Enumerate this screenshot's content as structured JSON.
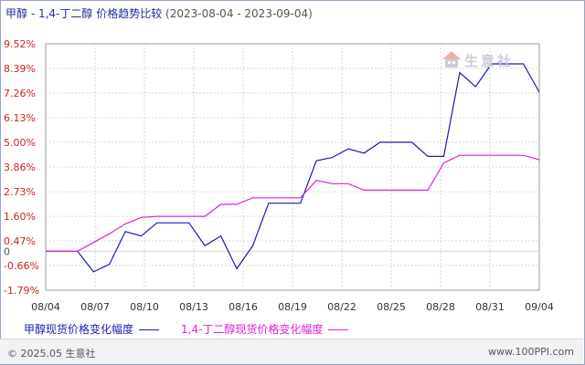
{
  "header": {
    "title": "甲醇 - 1,4-丁二醇 价格趋势比较",
    "date_range": "(2023-08-04 - 2023-09-04)"
  },
  "watermark": {
    "text": "生意社"
  },
  "footer": {
    "copyright": "© 2025.05 生意社",
    "site": "www.100PPI.com"
  },
  "colors": {
    "series_1": "#1a1ab8",
    "series_2": "#e020d8",
    "positive_tick": "#cc2222",
    "negative_tick": "#cc2222",
    "zero_tick": "#555555"
  },
  "chart_data": {
    "type": "line",
    "title": "甲醇 - 1,4-丁二醇 价格趋势比较",
    "xlabel": "",
    "ylabel": "",
    "ylim": [
      -1.79,
      9.52
    ],
    "y_ticks": [
      "9.52%",
      "8.39%",
      "7.26%",
      "6.13%",
      "5.00%",
      "3.86%",
      "2.73%",
      "1.60%",
      "0.47%",
      "0",
      "-0.66%",
      "-1.79%"
    ],
    "y_tick_values": [
      9.52,
      8.39,
      7.26,
      6.13,
      5.0,
      3.86,
      2.73,
      1.6,
      0.47,
      0,
      -0.66,
      -1.79
    ],
    "x_ticks": [
      "08/04",
      "08/07",
      "08/10",
      "08/13",
      "08/16",
      "08/19",
      "08/22",
      "08/25",
      "08/28",
      "08/31",
      "09/04"
    ],
    "x_tick_days": [
      0,
      3,
      6,
      9,
      12,
      15,
      18,
      21,
      24,
      27,
      30
    ],
    "grid": true,
    "legend_position": "bottom",
    "series": [
      {
        "name": "甲醇现货价格变化幅度",
        "color": "#1a1ab8",
        "points": [
          [
            0,
            0
          ],
          [
            1,
            0
          ],
          [
            2,
            0
          ],
          [
            3,
            -0.95
          ],
          [
            4,
            -0.6
          ],
          [
            5,
            0.9
          ],
          [
            6,
            0.7
          ],
          [
            7,
            1.3
          ],
          [
            8,
            1.3
          ],
          [
            9,
            1.3
          ],
          [
            10,
            0.25
          ],
          [
            11,
            0.7
          ],
          [
            12,
            -0.8
          ],
          [
            13,
            0.25
          ],
          [
            14,
            2.2
          ],
          [
            15,
            2.2
          ],
          [
            16,
            2.2
          ],
          [
            17,
            4.15
          ],
          [
            18,
            4.3
          ],
          [
            19,
            4.7
          ],
          [
            20,
            4.5
          ],
          [
            21,
            5.0
          ],
          [
            22,
            5.0
          ],
          [
            23,
            5.0
          ],
          [
            24,
            4.35
          ],
          [
            25,
            4.35
          ],
          [
            26,
            8.2
          ],
          [
            27,
            7.55
          ],
          [
            28,
            8.6
          ],
          [
            29,
            8.6
          ],
          [
            30,
            8.6
          ],
          [
            31,
            7.3
          ]
        ]
      },
      {
        "name": "1,4-丁二醇现货价格变化幅度",
        "color": "#e020d8",
        "points": [
          [
            0,
            0
          ],
          [
            1,
            0
          ],
          [
            2,
            0
          ],
          [
            3,
            0.4
          ],
          [
            4,
            0.8
          ],
          [
            5,
            1.25
          ],
          [
            6,
            1.55
          ],
          [
            7,
            1.6
          ],
          [
            8,
            1.6
          ],
          [
            9,
            1.6
          ],
          [
            10,
            1.6
          ],
          [
            11,
            2.15
          ],
          [
            12,
            2.15
          ],
          [
            13,
            2.45
          ],
          [
            14,
            2.45
          ],
          [
            15,
            2.45
          ],
          [
            16,
            2.45
          ],
          [
            17,
            3.25
          ],
          [
            18,
            3.1
          ],
          [
            19,
            3.1
          ],
          [
            20,
            2.8
          ],
          [
            21,
            2.8
          ],
          [
            22,
            2.8
          ],
          [
            23,
            2.8
          ],
          [
            24,
            2.8
          ],
          [
            25,
            4.05
          ],
          [
            26,
            4.4
          ],
          [
            27,
            4.4
          ],
          [
            28,
            4.4
          ],
          [
            29,
            4.4
          ],
          [
            30,
            4.4
          ],
          [
            31,
            4.2
          ]
        ]
      }
    ]
  }
}
